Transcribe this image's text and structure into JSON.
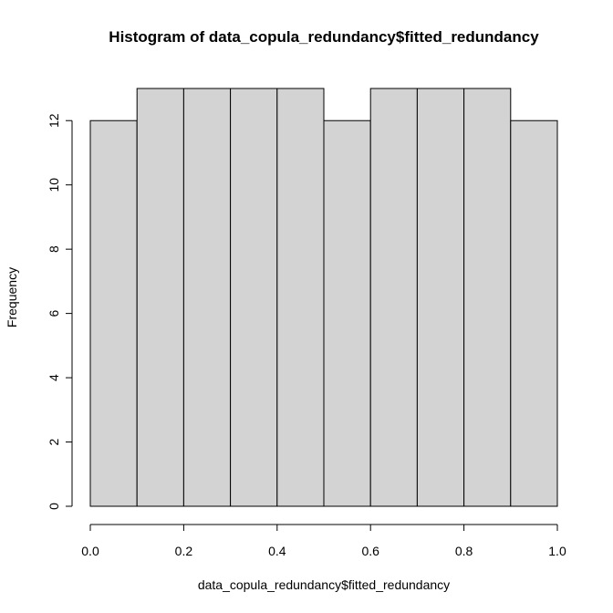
{
  "chart_data": {
    "type": "bar",
    "title": "Histogram of data_copula_redundancy$fitted_redundancy",
    "xlabel": "data_copula_redundancy$fitted_redundancy",
    "ylabel": "Frequency",
    "bins": [
      {
        "start": 0.0,
        "end": 0.1,
        "count": 12
      },
      {
        "start": 0.1,
        "end": 0.2,
        "count": 13
      },
      {
        "start": 0.2,
        "end": 0.3,
        "count": 13
      },
      {
        "start": 0.3,
        "end": 0.4,
        "count": 13
      },
      {
        "start": 0.4,
        "end": 0.5,
        "count": 13
      },
      {
        "start": 0.5,
        "end": 0.6,
        "count": 12
      },
      {
        "start": 0.6,
        "end": 0.7,
        "count": 13
      },
      {
        "start": 0.7,
        "end": 0.8,
        "count": 13
      },
      {
        "start": 0.8,
        "end": 0.9,
        "count": 13
      },
      {
        "start": 0.9,
        "end": 1.0,
        "count": 12
      }
    ],
    "xlim": [
      0.0,
      1.0
    ],
    "ylim": [
      0,
      13
    ],
    "x_ticks": [
      0.0,
      0.2,
      0.4,
      0.6,
      0.8,
      1.0
    ],
    "x_tick_labels": [
      "0.0",
      "0.2",
      "0.4",
      "0.6",
      "0.8",
      "1.0"
    ],
    "y_ticks": [
      0,
      2,
      4,
      6,
      8,
      10,
      12
    ],
    "y_tick_labels": [
      "0",
      "2",
      "4",
      "6",
      "8",
      "10",
      "12"
    ],
    "bar_fill": "#d3d3d3",
    "bar_border": "#000000",
    "grid": false,
    "legend": "none"
  }
}
